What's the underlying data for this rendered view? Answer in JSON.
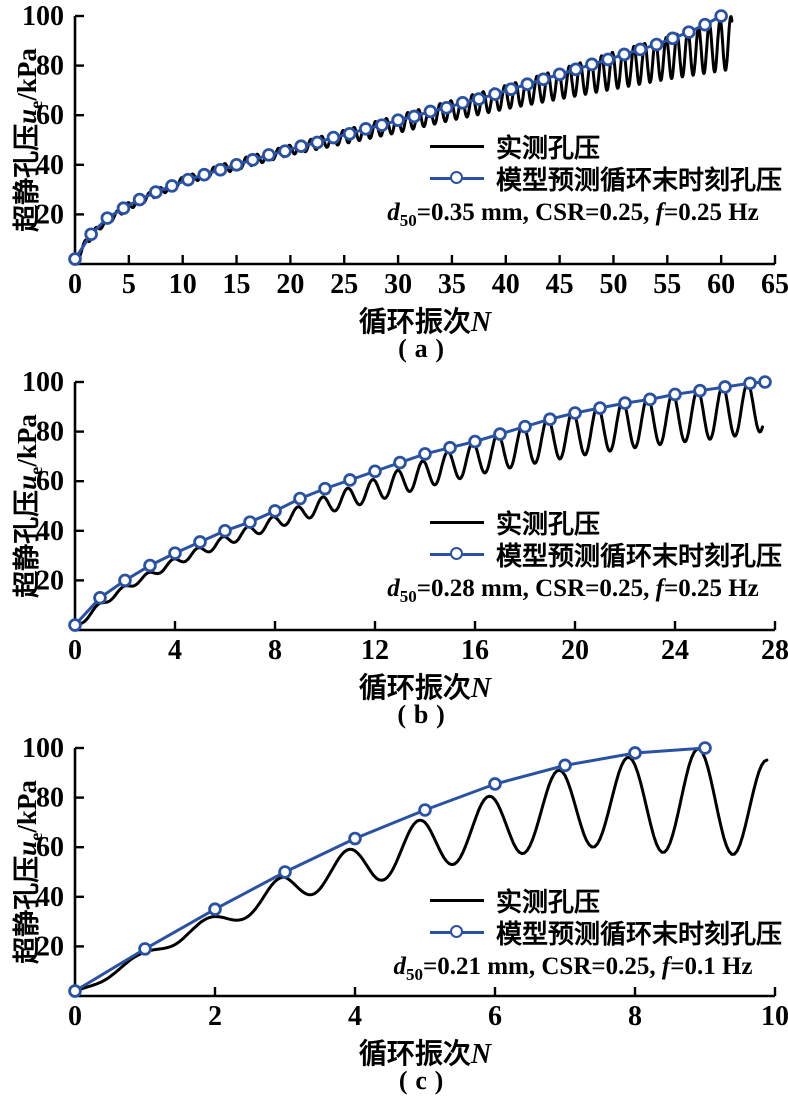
{
  "page": {
    "background": "#ffffff"
  },
  "colors": {
    "measured_black": "#000000",
    "model_blue": "#2a52a4",
    "axis": "#000000"
  },
  "legend": {
    "measured": "实测孔压",
    "model": "模型预测循环末时刻孔压"
  },
  "axis": {
    "xlabel_prefix": "循环振次",
    "xlabel_var": "N",
    "ylabel_prefix": "超静孔压",
    "ylabel_var": "u",
    "ylabel_sub": "e",
    "ylabel_unit": "/kPa"
  },
  "chart_data": [
    {
      "type": "line",
      "tag": "(a)",
      "xlabel": "循环振次N",
      "ylabel": "超静孔压ue/kPa",
      "xlim": [
        0,
        65
      ],
      "ylim": [
        0,
        100
      ],
      "xticks": [
        0,
        5,
        10,
        15,
        20,
        25,
        30,
        35,
        40,
        45,
        50,
        55,
        60,
        65
      ],
      "yticks": [
        20,
        40,
        60,
        80,
        100
      ],
      "grid": false,
      "legend_position": "inside-right",
      "annotation": {
        "text": "d50=0.35 mm, CSR=0.25, f=0.25 Hz",
        "var1": "d",
        "sub1": "50",
        "mid": "=0.35 mm, CSR=0.25, ",
        "var2": "f",
        "tail": "=0.25 Hz"
      },
      "series": [
        {
          "name": "实测孔压",
          "type": "oscillating",
          "color": "#000000",
          "period": 1,
          "phase": 0.1,
          "envelope_x": [
            0,
            1,
            2,
            5,
            10,
            15,
            20,
            25,
            30,
            35,
            40,
            45,
            50,
            55,
            58,
            61
          ],
          "peak": [
            2,
            10,
            15,
            25,
            35,
            42,
            48,
            54,
            60,
            66,
            72,
            78.5,
            85.5,
            91.5,
            95.5,
            100
          ],
          "trough": [
            0,
            7,
            13,
            22,
            32,
            38,
            44,
            48.5,
            53,
            58,
            62.5,
            66.5,
            70.5,
            74.5,
            76.5,
            78.5
          ]
        },
        {
          "name": "模型预测循环末时刻孔压",
          "type": "line-marker",
          "color": "#2a52a4",
          "marker": "circle",
          "x": [
            0,
            1.5,
            3,
            4.5,
            6,
            7.5,
            9,
            10.5,
            12,
            13.5,
            15,
            16.5,
            18,
            19.5,
            21,
            22.5,
            24,
            25.5,
            27,
            28.5,
            30,
            31.5,
            33,
            34.5,
            36,
            37.5,
            39,
            40.5,
            42,
            43.5,
            45,
            46.5,
            48,
            49.5,
            51,
            52.5,
            54,
            55.5,
            57,
            58.5,
            60
          ],
          "y": [
            2,
            12,
            18.5,
            22.5,
            26,
            29,
            31.5,
            34,
            36,
            38,
            40,
            42,
            44,
            45.5,
            47.5,
            49,
            51,
            52.5,
            54.5,
            56,
            58,
            59.5,
            61.5,
            63,
            65,
            66.5,
            68.5,
            70.5,
            72.5,
            74.5,
            76.5,
            78.5,
            80.5,
            82.5,
            84.5,
            86.5,
            88.5,
            91,
            93.5,
            96.5,
            100
          ]
        }
      ]
    },
    {
      "type": "line",
      "tag": "(b)",
      "xlabel": "循环振次N",
      "ylabel": "超静孔压ue/kPa",
      "xlim": [
        0,
        28
      ],
      "ylim": [
        0,
        100
      ],
      "xticks": [
        0,
        4,
        8,
        12,
        16,
        20,
        24,
        28
      ],
      "yticks": [
        20,
        40,
        60,
        80,
        100
      ],
      "grid": false,
      "legend_position": "inside-right",
      "annotation": {
        "text": "d50=0.28 mm, CSR=0.25, f=0.25 Hz",
        "var1": "d",
        "sub1": "50",
        "mid": "=0.28 mm, CSR=0.25, ",
        "var2": "f",
        "tail": "=0.25 Hz"
      },
      "series": [
        {
          "name": "实测孔压",
          "type": "oscillating",
          "color": "#000000",
          "period": 1,
          "phase": 0.1,
          "envelope_x": [
            0,
            1,
            2,
            4,
            6,
            8,
            10,
            12,
            14,
            16,
            18,
            20,
            22,
            24,
            26,
            27.5
          ],
          "peak": [
            2,
            11,
            18,
            29,
            38,
            46,
            54,
            61,
            68.5,
            76,
            83,
            88.5,
            92.5,
            95.5,
            98.5,
            100
          ],
          "trough": [
            0,
            9,
            16,
            26,
            34,
            41,
            47,
            52,
            57.5,
            62.5,
            66.5,
            70,
            73,
            75.5,
            77.5,
            80
          ]
        },
        {
          "name": "模型预测循环末时刻孔压",
          "type": "line-marker",
          "color": "#2a52a4",
          "marker": "circle",
          "x": [
            0,
            1,
            2,
            3,
            4,
            5,
            6,
            7,
            8,
            9,
            10,
            11,
            12,
            13,
            14,
            15,
            16,
            17,
            18,
            19,
            20,
            21,
            22,
            23,
            24,
            25,
            26,
            27,
            27.6
          ],
          "y": [
            2,
            13,
            20,
            26,
            31,
            35.5,
            40,
            43.5,
            48,
            53,
            57,
            60.5,
            64,
            67.5,
            71,
            73.5,
            76,
            79,
            82,
            85,
            87.5,
            89.5,
            91.5,
            93,
            95,
            96.5,
            98,
            99.5,
            100
          ]
        }
      ]
    },
    {
      "type": "line",
      "tag": "(c)",
      "xlabel": "循环振次N",
      "ylabel": "超静孔压ue/kPa",
      "xlim": [
        0,
        10
      ],
      "ylim": [
        0,
        100
      ],
      "xticks": [
        0,
        2,
        4,
        6,
        8,
        10
      ],
      "yticks": [
        20,
        40,
        60,
        80,
        100
      ],
      "grid": false,
      "legend_position": "inside-right",
      "annotation": {
        "text": "d50=0.21 mm, CSR=0.25, f=0.1 Hz",
        "var1": "d",
        "sub1": "50",
        "mid": "=0.21 mm, CSR=0.25, ",
        "var2": "f",
        "tail": "=0.1 Hz"
      },
      "series": [
        {
          "name": "实测孔压",
          "type": "oscillating",
          "color": "#000000",
          "period": 1,
          "phase": 0.1,
          "envelope_x": [
            0,
            0.4,
            1,
            1.6,
            2.3,
            3,
            3.6,
            4.3,
            5,
            5.6,
            6.3,
            7,
            7.6,
            8.3,
            9,
            9.5,
            9.9
          ],
          "peak": [
            2,
            9,
            18,
            28,
            36,
            49,
            56,
            63,
            72,
            77,
            85,
            92,
            95,
            98,
            100,
            100,
            95
          ],
          "trough": [
            0,
            6,
            15,
            23,
            30,
            37,
            43,
            46,
            51,
            54,
            57,
            60,
            60,
            58,
            57,
            57,
            57
          ]
        },
        {
          "name": "模型预测循环末时刻孔压",
          "type": "line-marker",
          "color": "#2a52a4",
          "marker": "circle",
          "x": [
            0,
            1,
            2,
            3,
            4,
            5,
            6,
            7,
            8,
            9
          ],
          "y": [
            2,
            19,
            35,
            50,
            63.5,
            75,
            85.5,
            93,
            98,
            100
          ]
        }
      ]
    }
  ]
}
